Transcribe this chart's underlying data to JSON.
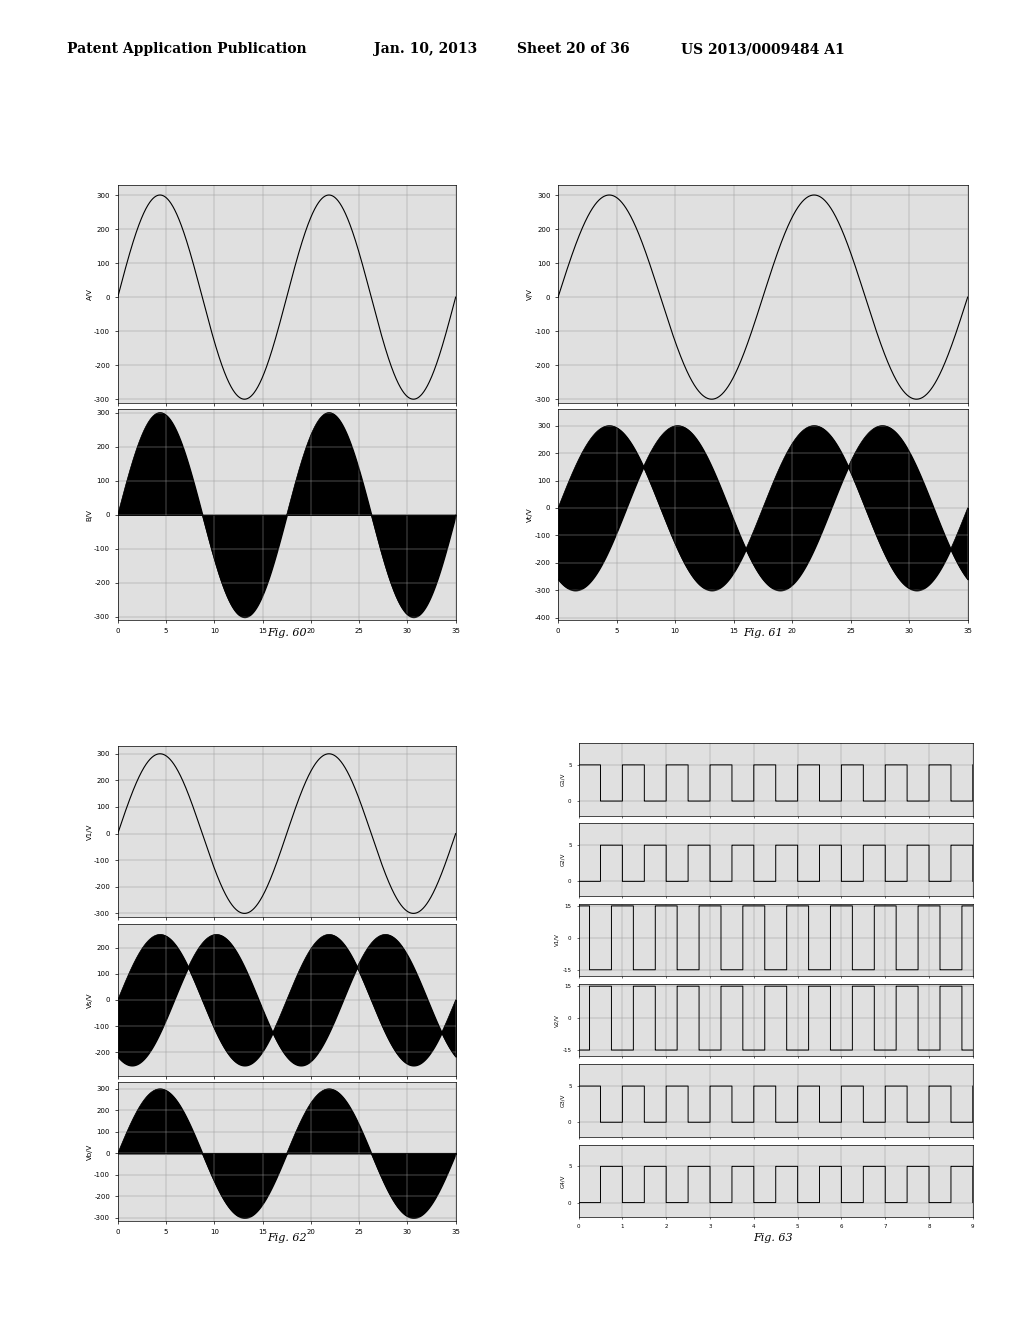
{
  "header_left": "Patent Application Publication",
  "header_mid1": "Jan. 10, 2013",
  "header_mid2": "Sheet 20 of 36",
  "header_right": "US 2013/0009484 A1",
  "fig60_label": "Fig. 60",
  "fig61_label": "Fig. 61",
  "fig62_label": "Fig. 62",
  "fig63_label": "Fig. 63",
  "background_color": "#ffffff",
  "plot_bg": "#e8e8e8",
  "line_color": "#000000",
  "fill_color": "#000000",
  "grid_color": "#999999",
  "font_size_header": 10,
  "font_size_fig": 8
}
